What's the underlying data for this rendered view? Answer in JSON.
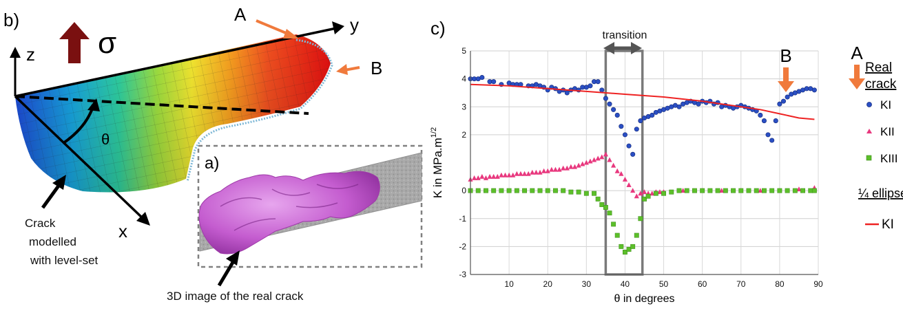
{
  "figure": {
    "panel_b": {
      "label": "b)",
      "sigma": "σ",
      "axis_z": "z",
      "axis_y": "y",
      "axis_x": "x",
      "angle": "θ",
      "point_a": "A",
      "point_b": "B",
      "caption_lines": [
        "Crack",
        "modelled",
        "with level-set"
      ]
    },
    "panel_a": {
      "label": "a)",
      "caption": "3D image of the real crack"
    },
    "panel_c": {
      "label": "c)",
      "transition_label": "transition",
      "marker_a": "A",
      "marker_b": "B",
      "legend": {
        "real_crack_lines": [
          "Real",
          "crack"
        ],
        "ellipse_title": "¼ ellipse",
        "items": [
          {
            "name": "KI",
            "color": "#2a4fc4",
            "shape": "circle"
          },
          {
            "name": "KII",
            "color": "#e8387e",
            "shape": "triangle"
          },
          {
            "name": "KIII",
            "color": "#5cbf2a",
            "shape": "square"
          },
          {
            "name": "KI",
            "color": "#ee2222",
            "shape": "line"
          }
        ]
      }
    }
  },
  "chart_data": {
    "type": "scatter",
    "xlabel": "θ in degrees",
    "ylabel": "K in MPa.m",
    "ylabel_sup": "1/2",
    "xlim": [
      0,
      90
    ],
    "ylim": [
      -3,
      5
    ],
    "x_ticks": [
      10,
      20,
      30,
      40,
      50,
      60,
      70,
      80,
      90
    ],
    "y_ticks": [
      -3,
      -2,
      -1,
      0,
      2,
      3,
      4,
      5
    ],
    "grid": true,
    "transition_band": [
      35,
      44.5
    ],
    "series": [
      {
        "name": "KI",
        "marker": "circle",
        "color": "#2a4fc4",
        "x": [
          0,
          1,
          2,
          3,
          5,
          6,
          8,
          10,
          11,
          12,
          13,
          15,
          16,
          17,
          18,
          19,
          20,
          21,
          22,
          23,
          24,
          25,
          26,
          27,
          28,
          29,
          30,
          31,
          32,
          33,
          34,
          35,
          36,
          37,
          38,
          39,
          40,
          41,
          42,
          43,
          44,
          45,
          46,
          47,
          48,
          49,
          50,
          51,
          52,
          53,
          54,
          55,
          56,
          57,
          58,
          59,
          60,
          61,
          62,
          63,
          64,
          65,
          66,
          67,
          68,
          69,
          70,
          71,
          72,
          73,
          74,
          75,
          76,
          77,
          78,
          79,
          80,
          81,
          82,
          83,
          84,
          85,
          86,
          87,
          88,
          89
        ],
        "y": [
          4.0,
          4.0,
          4.0,
          4.05,
          3.9,
          3.9,
          3.8,
          3.85,
          3.8,
          3.8,
          3.8,
          3.75,
          3.75,
          3.8,
          3.75,
          3.7,
          3.6,
          3.7,
          3.65,
          3.55,
          3.6,
          3.5,
          3.6,
          3.65,
          3.6,
          3.7,
          3.7,
          3.75,
          3.9,
          3.9,
          3.6,
          3.3,
          3.1,
          2.9,
          2.7,
          2.3,
          2.0,
          1.6,
          1.3,
          2.2,
          2.5,
          2.6,
          2.65,
          2.7,
          2.8,
          2.85,
          2.9,
          2.95,
          3.0,
          3.05,
          3.0,
          3.1,
          3.15,
          3.2,
          3.15,
          3.1,
          3.2,
          3.15,
          3.2,
          3.1,
          3.15,
          3.0,
          3.05,
          3.0,
          2.95,
          3.0,
          3.05,
          3.0,
          2.95,
          2.9,
          2.85,
          2.7,
          2.5,
          2.0,
          1.8,
          2.5,
          3.1,
          3.2,
          3.35,
          3.45,
          3.5,
          3.55,
          3.6,
          3.65,
          3.65,
          3.6
        ]
      },
      {
        "name": "KII",
        "marker": "triangle",
        "color": "#e8387e",
        "x": [
          0,
          1,
          2,
          3,
          4,
          5,
          6,
          7,
          8,
          9,
          10,
          11,
          12,
          13,
          14,
          15,
          16,
          17,
          18,
          19,
          20,
          21,
          22,
          23,
          24,
          25,
          26,
          27,
          28,
          29,
          30,
          31,
          32,
          33,
          34,
          35,
          36,
          37,
          38,
          39,
          40,
          41,
          42,
          43,
          44,
          45,
          46,
          47,
          48,
          49,
          50,
          55,
          60,
          65,
          70,
          75,
          80,
          85,
          89
        ],
        "y": [
          0.4,
          0.45,
          0.45,
          0.5,
          0.45,
          0.5,
          0.5,
          0.5,
          0.55,
          0.55,
          0.55,
          0.55,
          0.6,
          0.6,
          0.6,
          0.6,
          0.65,
          0.65,
          0.65,
          0.7,
          0.7,
          0.75,
          0.75,
          0.75,
          0.8,
          0.8,
          0.85,
          0.85,
          0.9,
          0.95,
          1.0,
          1.05,
          1.1,
          1.15,
          1.2,
          1.3,
          1.1,
          0.9,
          0.7,
          0.6,
          0.4,
          0.2,
          0.0,
          -0.2,
          -0.1,
          -0.05,
          -0.1,
          -0.1,
          -0.05,
          -0.05,
          -0.05,
          0.0,
          0.0,
          0.0,
          0.0,
          0.0,
          0.0,
          0.05,
          0.1
        ]
      },
      {
        "name": "KIII",
        "marker": "square",
        "color": "#5cbf2a",
        "x": [
          0,
          2,
          4,
          6,
          8,
          10,
          12,
          14,
          16,
          18,
          20,
          22,
          24,
          26,
          28,
          30,
          32,
          33,
          34,
          35,
          36,
          37,
          38,
          39,
          40,
          41,
          42,
          43,
          44,
          45,
          46,
          48,
          50,
          52,
          54,
          56,
          58,
          60,
          62,
          64,
          66,
          68,
          70,
          72,
          74,
          76,
          78,
          80,
          82,
          84,
          86,
          88,
          89
        ],
        "y": [
          0.0,
          0.0,
          0.0,
          0.0,
          0.0,
          0.0,
          0.0,
          0.0,
          0.0,
          0.0,
          0.0,
          0.0,
          0.0,
          -0.05,
          -0.05,
          -0.1,
          -0.1,
          -0.3,
          -0.5,
          -0.6,
          -0.8,
          -1.2,
          -1.6,
          -2.0,
          -2.2,
          -2.1,
          -2.0,
          -1.6,
          -1.0,
          -0.3,
          -0.2,
          -0.1,
          -0.1,
          -0.05,
          0.0,
          0.0,
          0.0,
          0.0,
          0.0,
          0.0,
          0.0,
          0.0,
          0.0,
          0.0,
          0.0,
          0.0,
          0.0,
          0.0,
          0.0,
          0.0,
          0.0,
          0.0,
          0.0
        ]
      },
      {
        "name": "KI",
        "marker": "line",
        "color": "#ee2222",
        "x": [
          0,
          10,
          20,
          30,
          40,
          50,
          60,
          65,
          70,
          75,
          80,
          85,
          89
        ],
        "y": [
          3.8,
          3.75,
          3.65,
          3.55,
          3.45,
          3.35,
          3.2,
          3.1,
          3.0,
          2.9,
          2.75,
          2.6,
          2.55
        ]
      }
    ]
  }
}
